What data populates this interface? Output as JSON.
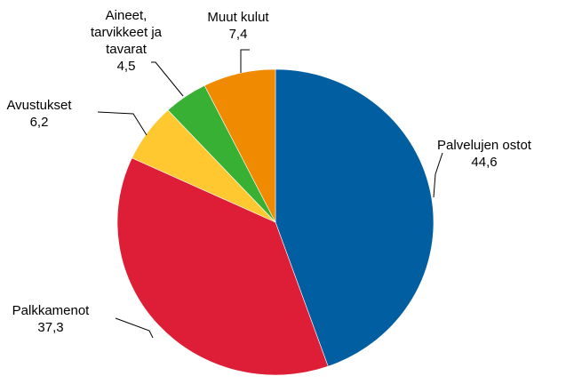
{
  "chart_data": {
    "type": "pie",
    "title": "",
    "start": "top",
    "direction": "clockwise",
    "legend": "none",
    "slices": [
      {
        "label": [
          "Palvelujen ostot"
        ],
        "value": 44.6,
        "value_label": "44,6",
        "color": "#005ea1"
      },
      {
        "label": [
          "Palkkamenot"
        ],
        "value": 37.3,
        "value_label": "37,3",
        "color": "#de1e36"
      },
      {
        "label": [
          "Avustukset"
        ],
        "value": 6.2,
        "value_label": "6,2",
        "color": "#ffc730"
      },
      {
        "label": [
          "Aineet,",
          "tarvikkeet ja",
          "tavarat"
        ],
        "value": 4.5,
        "value_label": "4,5",
        "color": "#37b033"
      },
      {
        "label": [
          "Muut kulut"
        ],
        "value": 7.4,
        "value_label": "7,4",
        "color": "#f08a00"
      }
    ]
  }
}
